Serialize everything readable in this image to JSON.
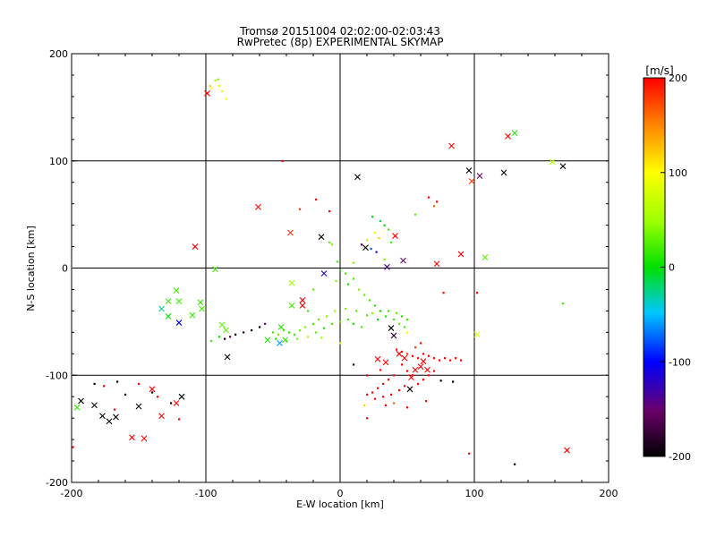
{
  "chart_data": {
    "type": "scatter",
    "title": "Tromsø 20151004 02:02:00-02:03:43",
    "subtitle": "RwPretec (8p) EXPERIMENTAL SKYMAP",
    "xlabel": "E-W location [km]",
    "ylabel": "N-S location [km]",
    "xlim": [
      -200,
      200
    ],
    "ylim": [
      -200,
      200
    ],
    "xticks": [
      "-200",
      "-100",
      "0",
      "100",
      "200"
    ],
    "yticks": [
      "-200",
      "-100",
      "0",
      "100",
      "200"
    ],
    "grid": true,
    "colorbar": {
      "unit": "[m/s]",
      "min": -200,
      "max": 200,
      "ticks": [
        "200",
        "100",
        "0",
        "-100",
        "-200"
      ],
      "colormap": "rainbow (black-purple-blue-cyan-green-yellow-red)"
    },
    "marker_x": [
      {
        "x": -99,
        "y": 163,
        "v": 200
      },
      {
        "x": 83,
        "y": 114,
        "v": 200
      },
      {
        "x": 125,
        "y": 123,
        "v": 200
      },
      {
        "x": 130,
        "y": 126,
        "v": 10
      },
      {
        "x": 13,
        "y": 85,
        "v": -200
      },
      {
        "x": 96,
        "y": 91,
        "v": -200
      },
      {
        "x": 104,
        "y": 86,
        "v": -150
      },
      {
        "x": 122,
        "y": 89,
        "v": -200
      },
      {
        "x": 166,
        "y": 95,
        "v": -200
      },
      {
        "x": 158,
        "y": 99,
        "v": 60
      },
      {
        "x": 98,
        "y": 81,
        "v": 180
      },
      {
        "x": -61,
        "y": 57,
        "v": 200
      },
      {
        "x": -37,
        "y": 33,
        "v": 180
      },
      {
        "x": -108,
        "y": 20,
        "v": 200
      },
      {
        "x": -93,
        "y": -1,
        "v": 20
      },
      {
        "x": -14,
        "y": 29,
        "v": -200
      },
      {
        "x": 41,
        "y": 30,
        "v": 200
      },
      {
        "x": 72,
        "y": 4,
        "v": 200
      },
      {
        "x": 90,
        "y": 13,
        "v": 200
      },
      {
        "x": 19,
        "y": 19,
        "v": -200
      },
      {
        "x": 35,
        "y": 1,
        "v": -130
      },
      {
        "x": 47,
        "y": 7,
        "v": -150
      },
      {
        "x": 108,
        "y": 10,
        "v": 30
      },
      {
        "x": -12,
        "y": -5,
        "v": -120
      },
      {
        "x": -36,
        "y": -14,
        "v": 50
      },
      {
        "x": -28,
        "y": -30,
        "v": 200
      },
      {
        "x": -28,
        "y": -35,
        "v": 200
      },
      {
        "x": -128,
        "y": -31,
        "v": 20
      },
      {
        "x": -122,
        "y": -21,
        "v": 20
      },
      {
        "x": -120,
        "y": -31,
        "v": 20
      },
      {
        "x": -133,
        "y": -38,
        "v": -30
      },
      {
        "x": -128,
        "y": -45,
        "v": 0
      },
      {
        "x": -120,
        "y": -51,
        "v": -100
      },
      {
        "x": -104,
        "y": -32,
        "v": 20
      },
      {
        "x": -110,
        "y": -44,
        "v": 20
      },
      {
        "x": -103,
        "y": -38,
        "v": 20
      },
      {
        "x": -88,
        "y": -53,
        "v": 30
      },
      {
        "x": -85,
        "y": -58,
        "v": 30
      },
      {
        "x": -44,
        "y": -55,
        "v": 10
      },
      {
        "x": -45,
        "y": -70,
        "v": -60
      },
      {
        "x": -41,
        "y": -67,
        "v": 20
      },
      {
        "x": -54,
        "y": -67,
        "v": 10
      },
      {
        "x": -36,
        "y": -35,
        "v": 20
      },
      {
        "x": 38,
        "y": -56,
        "v": -200
      },
      {
        "x": 40,
        "y": -63,
        "v": -180
      },
      {
        "x": 44,
        "y": -80,
        "v": 200
      },
      {
        "x": 48,
        "y": -84,
        "v": 200
      },
      {
        "x": 56,
        "y": -95,
        "v": 200
      },
      {
        "x": 60,
        "y": -92,
        "v": 200
      },
      {
        "x": 62,
        "y": -87,
        "v": 200
      },
      {
        "x": 52,
        "y": -113,
        "v": -200
      },
      {
        "x": 53,
        "y": -102,
        "v": 200
      },
      {
        "x": 65,
        "y": -95,
        "v": 200
      },
      {
        "x": 28,
        "y": -85,
        "v": 200
      },
      {
        "x": 34,
        "y": -88,
        "v": 200
      },
      {
        "x": 102,
        "y": -62,
        "v": 80
      },
      {
        "x": -84,
        "y": -83,
        "v": -200
      },
      {
        "x": -193,
        "y": -124,
        "v": -200
      },
      {
        "x": -183,
        "y": -128,
        "v": -200
      },
      {
        "x": -177,
        "y": -138,
        "v": -200
      },
      {
        "x": -172,
        "y": -143,
        "v": -200
      },
      {
        "x": -167,
        "y": -139,
        "v": -200
      },
      {
        "x": -150,
        "y": -129,
        "v": -200
      },
      {
        "x": -140,
        "y": -113,
        "v": 200
      },
      {
        "x": -133,
        "y": -138,
        "v": 200
      },
      {
        "x": -118,
        "y": -120,
        "v": -200
      },
      {
        "x": -122,
        "y": -126,
        "v": 200
      },
      {
        "x": -155,
        "y": -158,
        "v": 200
      },
      {
        "x": -146,
        "y": -159,
        "v": 200
      },
      {
        "x": -196,
        "y": -130,
        "v": 20
      },
      {
        "x": 169,
        "y": -170,
        "v": 200
      }
    ],
    "marker_dot": [
      {
        "x": -93,
        "y": 175,
        "v": 60
      },
      {
        "x": -90,
        "y": 170,
        "v": 80
      },
      {
        "x": -96,
        "y": 168,
        "v": 100
      },
      {
        "x": -88,
        "y": 165,
        "v": 90
      },
      {
        "x": -85,
        "y": 158,
        "v": 100
      },
      {
        "x": -91,
        "y": 176,
        "v": 40
      },
      {
        "x": -97,
        "y": 170,
        "v": 120
      },
      {
        "x": -43,
        "y": 100,
        "v": 200
      },
      {
        "x": -18,
        "y": 64,
        "v": 200
      },
      {
        "x": -8,
        "y": 53,
        "v": 200
      },
      {
        "x": -30,
        "y": 55,
        "v": 180
      },
      {
        "x": 24,
        "y": 48,
        "v": 0
      },
      {
        "x": 30,
        "y": 44,
        "v": -20
      },
      {
        "x": 33,
        "y": 40,
        "v": 0
      },
      {
        "x": 36,
        "y": 36,
        "v": 20
      },
      {
        "x": 26,
        "y": 33,
        "v": 80
      },
      {
        "x": 29,
        "y": 28,
        "v": 120
      },
      {
        "x": 20,
        "y": 26,
        "v": 60
      },
      {
        "x": 38,
        "y": 24,
        "v": 20
      },
      {
        "x": 23,
        "y": 18,
        "v": -80
      },
      {
        "x": 27,
        "y": 15,
        "v": -120
      },
      {
        "x": 16,
        "y": 22,
        "v": -160
      },
      {
        "x": 33,
        "y": 8,
        "v": 40
      },
      {
        "x": 10,
        "y": 5,
        "v": 40
      },
      {
        "x": -6,
        "y": 22,
        "v": 40
      },
      {
        "x": -8,
        "y": 24,
        "v": 30
      },
      {
        "x": -2,
        "y": 6,
        "v": 20
      },
      {
        "x": 0,
        "y": -2,
        "v": 10
      },
      {
        "x": 4,
        "y": -5,
        "v": 20
      },
      {
        "x": -3,
        "y": -12,
        "v": 40
      },
      {
        "x": 6,
        "y": -15,
        "v": 0
      },
      {
        "x": 10,
        "y": -10,
        "v": 20
      },
      {
        "x": 14,
        "y": -20,
        "v": 40
      },
      {
        "x": 18,
        "y": -25,
        "v": 30
      },
      {
        "x": 22,
        "y": -30,
        "v": 20
      },
      {
        "x": 26,
        "y": -35,
        "v": 10
      },
      {
        "x": 30,
        "y": -40,
        "v": 0
      },
      {
        "x": 34,
        "y": -45,
        "v": 10
      },
      {
        "x": 40,
        "y": -48,
        "v": 20
      },
      {
        "x": 44,
        "y": -52,
        "v": 30
      },
      {
        "x": 48,
        "y": -55,
        "v": 20
      },
      {
        "x": 28,
        "y": -48,
        "v": 0
      },
      {
        "x": 20,
        "y": -44,
        "v": 20
      },
      {
        "x": 12,
        "y": -40,
        "v": 30
      },
      {
        "x": 4,
        "y": -38,
        "v": 40
      },
      {
        "x": -4,
        "y": -40,
        "v": 50
      },
      {
        "x": -10,
        "y": -45,
        "v": 40
      },
      {
        "x": -16,
        "y": -48,
        "v": 30
      },
      {
        "x": -20,
        "y": -52,
        "v": 20
      },
      {
        "x": -26,
        "y": -55,
        "v": 40
      },
      {
        "x": -30,
        "y": -58,
        "v": 30
      },
      {
        "x": -34,
        "y": -62,
        "v": 20
      },
      {
        "x": -38,
        "y": -60,
        "v": 10
      },
      {
        "x": -42,
        "y": -58,
        "v": 20
      },
      {
        "x": -46,
        "y": -62,
        "v": 30
      },
      {
        "x": -50,
        "y": -60,
        "v": 20
      },
      {
        "x": -48,
        "y": -66,
        "v": 10
      },
      {
        "x": -40,
        "y": -68,
        "v": 20
      },
      {
        "x": -32,
        "y": -66,
        "v": 40
      },
      {
        "x": -24,
        "y": -64,
        "v": 60
      },
      {
        "x": -18,
        "y": -60,
        "v": 30
      },
      {
        "x": -12,
        "y": -56,
        "v": 10
      },
      {
        "x": -6,
        "y": -52,
        "v": 20
      },
      {
        "x": 0,
        "y": -50,
        "v": 30
      },
      {
        "x": 6,
        "y": -48,
        "v": 20
      },
      {
        "x": 10,
        "y": -52,
        "v": 10
      },
      {
        "x": 16,
        "y": -55,
        "v": 20
      },
      {
        "x": 36,
        "y": -40,
        "v": 20
      },
      {
        "x": 42,
        "y": -42,
        "v": 30
      },
      {
        "x": 46,
        "y": -45,
        "v": 10
      },
      {
        "x": 50,
        "y": -48,
        "v": 20
      },
      {
        "x": 24,
        "y": -42,
        "v": 40
      },
      {
        "x": -60,
        "y": -55,
        "v": -200
      },
      {
        "x": -66,
        "y": -58,
        "v": -200
      },
      {
        "x": -72,
        "y": -60,
        "v": -180
      },
      {
        "x": -78,
        "y": -62,
        "v": -200
      },
      {
        "x": -82,
        "y": -64,
        "v": -160
      },
      {
        "x": -86,
        "y": -66,
        "v": -200
      },
      {
        "x": -90,
        "y": -64,
        "v": 0
      },
      {
        "x": -96,
        "y": -68,
        "v": 20
      },
      {
        "x": -56,
        "y": -52,
        "v": -150
      },
      {
        "x": 42,
        "y": -76,
        "v": 200
      },
      {
        "x": 46,
        "y": -78,
        "v": 200
      },
      {
        "x": 50,
        "y": -80,
        "v": 180
      },
      {
        "x": 54,
        "y": -82,
        "v": 200
      },
      {
        "x": 58,
        "y": -84,
        "v": 200
      },
      {
        "x": 62,
        "y": -80,
        "v": 200
      },
      {
        "x": 66,
        "y": -82,
        "v": 200
      },
      {
        "x": 70,
        "y": -84,
        "v": 200
      },
      {
        "x": 74,
        "y": -86,
        "v": 200
      },
      {
        "x": 78,
        "y": -84,
        "v": 200
      },
      {
        "x": 82,
        "y": -86,
        "v": 200
      },
      {
        "x": 86,
        "y": -84,
        "v": 200
      },
      {
        "x": 90,
        "y": -86,
        "v": 200
      },
      {
        "x": 46,
        "y": -90,
        "v": 200
      },
      {
        "x": 50,
        "y": -96,
        "v": 200
      },
      {
        "x": 54,
        "y": -100,
        "v": 200
      },
      {
        "x": 40,
        "y": -100,
        "v": 200
      },
      {
        "x": 36,
        "y": -104,
        "v": 200
      },
      {
        "x": 32,
        "y": -108,
        "v": 200
      },
      {
        "x": 28,
        "y": -112,
        "v": 200
      },
      {
        "x": 24,
        "y": -116,
        "v": 200
      },
      {
        "x": 20,
        "y": -118,
        "v": 200
      },
      {
        "x": 26,
        "y": -122,
        "v": 200
      },
      {
        "x": 32,
        "y": -120,
        "v": 200
      },
      {
        "x": 38,
        "y": -118,
        "v": 200
      },
      {
        "x": 44,
        "y": -114,
        "v": 200
      },
      {
        "x": 48,
        "y": -110,
        "v": 200
      },
      {
        "x": 58,
        "y": -108,
        "v": 200
      },
      {
        "x": 62,
        "y": -104,
        "v": 200
      },
      {
        "x": 66,
        "y": -100,
        "v": 200
      },
      {
        "x": 70,
        "y": -96,
        "v": 200
      },
      {
        "x": 56,
        "y": -74,
        "v": 180
      },
      {
        "x": 60,
        "y": -70,
        "v": 200
      },
      {
        "x": 34,
        "y": -128,
        "v": 200
      },
      {
        "x": 40,
        "y": -126,
        "v": 160
      },
      {
        "x": 18,
        "y": -128,
        "v": 120
      },
      {
        "x": 20,
        "y": -140,
        "v": 200
      },
      {
        "x": 50,
        "y": -130,
        "v": 200
      },
      {
        "x": 64,
        "y": -124,
        "v": 200
      },
      {
        "x": 75,
        "y": -105,
        "v": -200
      },
      {
        "x": 84,
        "y": -106,
        "v": -200
      },
      {
        "x": 30,
        "y": -95,
        "v": 200
      },
      {
        "x": 20,
        "y": -100,
        "v": 200
      },
      {
        "x": 10,
        "y": -90,
        "v": -200
      },
      {
        "x": 130,
        "y": -183,
        "v": -200
      },
      {
        "x": 96,
        "y": -173,
        "v": 200
      },
      {
        "x": -199,
        "y": -167,
        "v": 200
      },
      {
        "x": -183,
        "y": -108,
        "v": -200
      },
      {
        "x": -176,
        "y": -110,
        "v": 200
      },
      {
        "x": -166,
        "y": -106,
        "v": -200
      },
      {
        "x": -160,
        "y": -118,
        "v": -200
      },
      {
        "x": -150,
        "y": -108,
        "v": 200
      },
      {
        "x": -140,
        "y": -116,
        "v": -200
      },
      {
        "x": -136,
        "y": -120,
        "v": 200
      },
      {
        "x": -126,
        "y": -126,
        "v": -200
      },
      {
        "x": -120,
        "y": -141,
        "v": 200
      },
      {
        "x": -168,
        "y": -132,
        "v": 200
      },
      {
        "x": 66,
        "y": 66,
        "v": 200
      },
      {
        "x": 72,
        "y": 62,
        "v": 200
      },
      {
        "x": 70,
        "y": 58,
        "v": 160
      },
      {
        "x": 102,
        "y": -23,
        "v": 200
      },
      {
        "x": 77,
        "y": -23,
        "v": 200
      },
      {
        "x": 50,
        "y": -60,
        "v": 100
      },
      {
        "x": -20,
        "y": -20,
        "v": 30
      },
      {
        "x": -24,
        "y": -40,
        "v": 20
      },
      {
        "x": 166,
        "y": -33,
        "v": 20
      },
      {
        "x": 56,
        "y": 50,
        "v": 30
      },
      {
        "x": -14,
        "y": -65,
        "v": 60
      },
      {
        "x": 0,
        "y": -70,
        "v": 80
      }
    ]
  }
}
